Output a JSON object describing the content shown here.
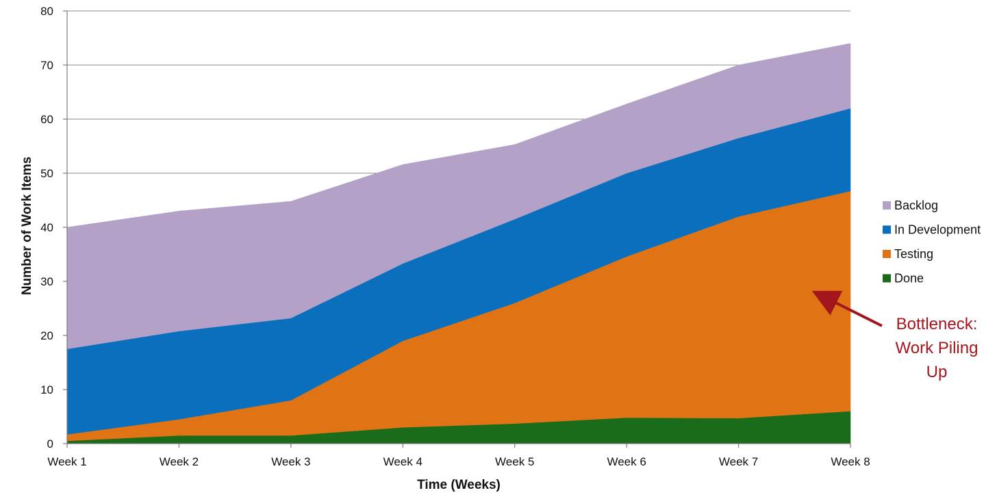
{
  "chart_data": {
    "type": "area",
    "stacked": true,
    "title": "",
    "xlabel": "Time (Weeks)",
    "ylabel": "Number of Work Items",
    "categories": [
      "Week 1",
      "Week 2",
      "Week 3",
      "Week 4",
      "Week 5",
      "Week 6",
      "Week 7",
      "Week 8"
    ],
    "ylim": [
      0,
      80
    ],
    "yticks": [
      0,
      10,
      20,
      30,
      40,
      50,
      60,
      70,
      80
    ],
    "grid": true,
    "legend_position": "right",
    "series": [
      {
        "name": "Done",
        "color": "#1a6b1a",
        "values": [
          0.5,
          1.5,
          1.5,
          3,
          3.7,
          4.8,
          4.7,
          6
        ]
      },
      {
        "name": "Testing",
        "color": "#e07414",
        "values": [
          1.2,
          3,
          6.5,
          16,
          22.3,
          29.8,
          37.3,
          40.7
        ]
      },
      {
        "name": "In Development",
        "color": "#0a6fbd",
        "values": [
          15.8,
          16.3,
          15.2,
          14.3,
          15.5,
          15.4,
          14.5,
          15.3
        ]
      },
      {
        "name": "Backlog",
        "color": "#b3a1c8",
        "values": [
          22.5,
          22.2,
          21.6,
          18.3,
          13.8,
          12.8,
          13.5,
          12
        ]
      }
    ],
    "legend_order": [
      "Backlog",
      "In Development",
      "Testing",
      "Done"
    ],
    "annotation": {
      "lines": [
        "Bottleneck:",
        "Work Piling",
        "Up"
      ],
      "color": "#a3161c",
      "points_to": "Testing"
    }
  }
}
